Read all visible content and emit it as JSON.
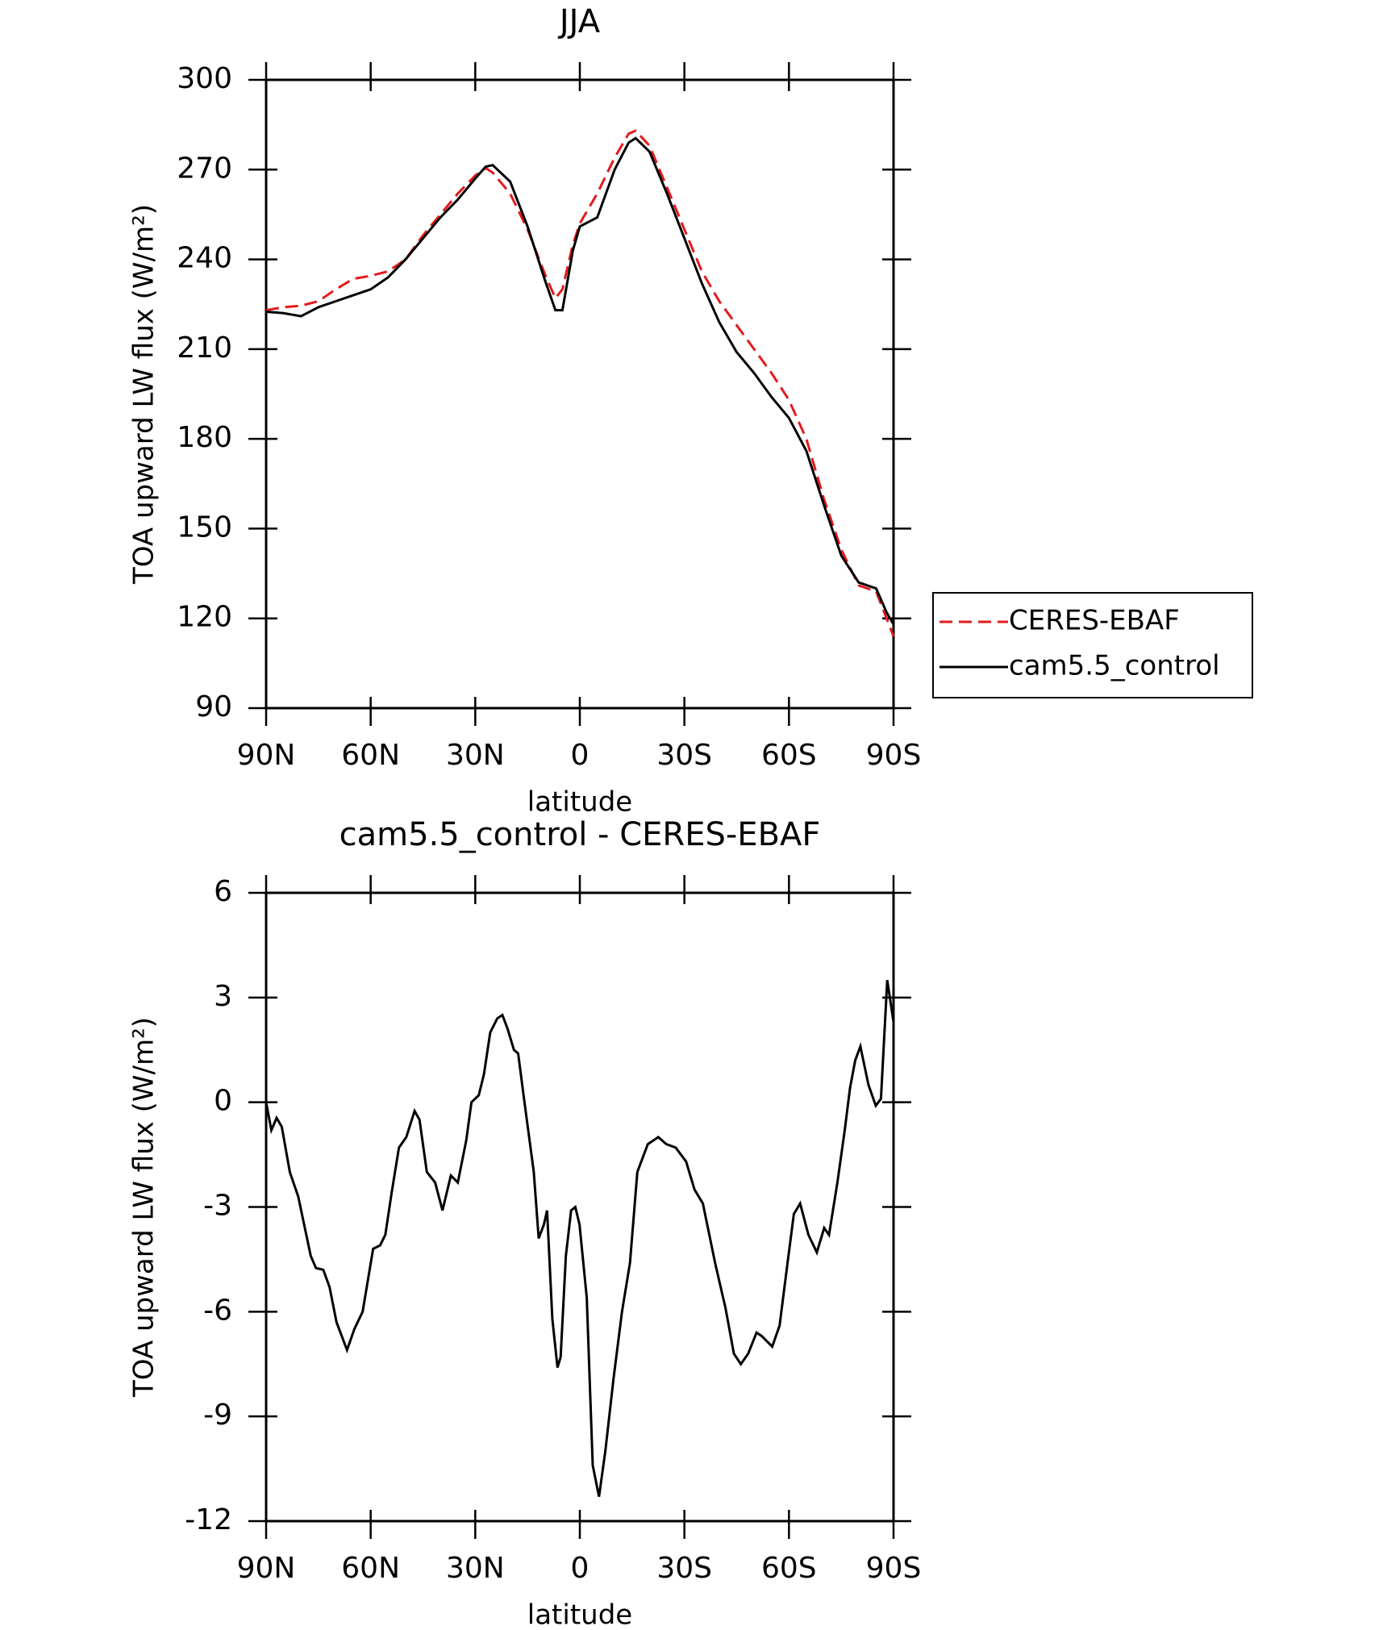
{
  "chart_data": [
    {
      "type": "line",
      "title": "JJA",
      "xlabel": "latitude",
      "ylabel": "TOA upward LW flux (W/m²)",
      "xlim": [
        90,
        -90
      ],
      "xticks": [
        {
          "value": 90,
          "label": "90N"
        },
        {
          "value": 60,
          "label": "60N"
        },
        {
          "value": 30,
          "label": "30N"
        },
        0,
        {
          "value": -30,
          "label": "30S"
        },
        {
          "value": -60,
          "label": "60S"
        },
        {
          "value": -90,
          "label": "90S"
        }
      ],
      "ylim": [
        90,
        300
      ],
      "yticks": [
        90,
        120,
        150,
        180,
        210,
        240,
        270,
        300
      ],
      "legend": "outside-right",
      "series": [
        {
          "name": "CERES-EBAF",
          "color": "#e41a1c",
          "dash": true,
          "x": [
            90,
            85,
            80,
            75,
            70,
            65,
            60,
            55,
            50,
            45,
            40,
            35,
            30,
            27,
            25,
            20,
            15,
            10,
            7,
            5,
            2,
            0,
            -5,
            -10,
            -14,
            -16,
            -20,
            -25,
            -30,
            -35,
            -40,
            -45,
            -50,
            -55,
            -60,
            -65,
            -70,
            -75,
            -80,
            -85,
            -88,
            -90
          ],
          "values": [
            223,
            224,
            224.5,
            226,
            230,
            233.5,
            234.5,
            236,
            240,
            248,
            255,
            262,
            268,
            270.5,
            269,
            262,
            250,
            235,
            227,
            230,
            245,
            252,
            262,
            274,
            282,
            283,
            278,
            264,
            250,
            236,
            226,
            218,
            210,
            202,
            193,
            180,
            160,
            143,
            131,
            129,
            120,
            114
          ]
        },
        {
          "name": "cam5.5_control",
          "color": "#000000",
          "dash": false,
          "x": [
            90,
            85,
            80,
            75,
            70,
            65,
            60,
            55,
            50,
            45,
            40,
            35,
            30,
            27,
            25,
            20,
            15,
            10,
            7,
            5,
            2,
            0,
            -5,
            -10,
            -14,
            -16,
            -20,
            -25,
            -30,
            -35,
            -40,
            -45,
            -50,
            -55,
            -60,
            -65,
            -70,
            -75,
            -80,
            -85,
            -88,
            -90
          ],
          "values": [
            222.5,
            222,
            221,
            224,
            226,
            228,
            230,
            234,
            240,
            247,
            254,
            260,
            267,
            271,
            271.5,
            266,
            251,
            233,
            223,
            223,
            243,
            251,
            254,
            270,
            279,
            280.5,
            276,
            262,
            247,
            232,
            219,
            209,
            202,
            194,
            187,
            176,
            158,
            141,
            132,
            130,
            122,
            118
          ]
        }
      ]
    },
    {
      "type": "line",
      "title": "cam5.5_control - CERES-EBAF",
      "xlabel": "latitude",
      "ylabel": "TOA upward LW flux (W/m²)",
      "xlim": [
        90,
        -90
      ],
      "xticks": [
        {
          "value": 90,
          "label": "90N"
        },
        {
          "value": 60,
          "label": "60N"
        },
        {
          "value": 30,
          "label": "30N"
        },
        0,
        {
          "value": -30,
          "label": "30S"
        },
        {
          "value": -60,
          "label": "60S"
        },
        {
          "value": -90,
          "label": "90S"
        }
      ],
      "ylim": [
        -12,
        6
      ],
      "yticks": [
        -12,
        -9,
        -6,
        -3,
        0,
        3,
        6
      ],
      "series": [
        {
          "color": "#000000",
          "dash": false,
          "x": [
            90,
            88.5,
            87,
            85.5,
            83.2,
            80.8,
            77.2,
            75.7,
            73.6,
            71.8,
            69.8,
            66.8,
            64.7,
            62.3,
            59.3,
            57.3,
            55.8,
            54,
            51.9,
            49.8,
            47.4,
            46,
            43.9,
            41.5,
            39.4,
            37,
            35,
            32.6,
            31.1,
            29,
            27.5,
            25.7,
            23.7,
            22.2,
            20.7,
            18.9,
            17.7,
            16,
            13.2,
            11.8,
            10.3,
            9.4,
            7.9,
            6.4,
            5.5,
            4,
            2.5,
            1.3,
            0.1,
            -2,
            -3.7,
            -5.5,
            -7.3,
            -9.7,
            -12.1,
            -14.4,
            -16.5,
            -19.5,
            -22.5,
            -24.8,
            -27.5,
            -30.5,
            -32.9,
            -35.3,
            -38.8,
            -41.8,
            -44.2,
            -46.2,
            -48.3,
            -50.7,
            -52.2,
            -55.2,
            -57.3,
            -59.6,
            -61.4,
            -63.2,
            -65.6,
            -68,
            -70.1,
            -71.5,
            -73.9,
            -76,
            -77.5,
            -79,
            -80.5,
            -82.8,
            -84.9,
            -86.4,
            -88.2,
            -90
          ],
          "values": [
            0,
            -0.8,
            -0.45,
            -0.7,
            -2,
            -2.7,
            -4.4,
            -4.75,
            -4.8,
            -5.3,
            -6.3,
            -7.1,
            -6.5,
            -6,
            -4.2,
            -4.1,
            -3.8,
            -2.6,
            -1.3,
            -1,
            -0.25,
            -0.5,
            -2,
            -2.3,
            -3.1,
            -2.1,
            -2.3,
            -1.1,
            0,
            0.2,
            0.8,
            2,
            2.4,
            2.5,
            2.1,
            1.5,
            1.4,
            0.1,
            -2,
            -3.9,
            -3.5,
            -3.1,
            -6.2,
            -7.6,
            -7.3,
            -4.4,
            -3.1,
            -3,
            -3.5,
            -5.6,
            -10.4,
            -11.3,
            -10,
            -7.9,
            -6,
            -4.6,
            -2,
            -1.2,
            -1,
            -1.2,
            -1.3,
            -1.7,
            -2.5,
            -2.9,
            -4.6,
            -5.9,
            -7.2,
            -7.5,
            -7.2,
            -6.6,
            -6.7,
            -7,
            -6.4,
            -4.6,
            -3.2,
            -2.9,
            -3.8,
            -4.3,
            -3.6,
            -3.8,
            -2.3,
            -0.8,
            0.4,
            1.2,
            1.6,
            0.5,
            -0.1,
            0.1,
            3.5,
            2.3
          ]
        }
      ]
    }
  ]
}
